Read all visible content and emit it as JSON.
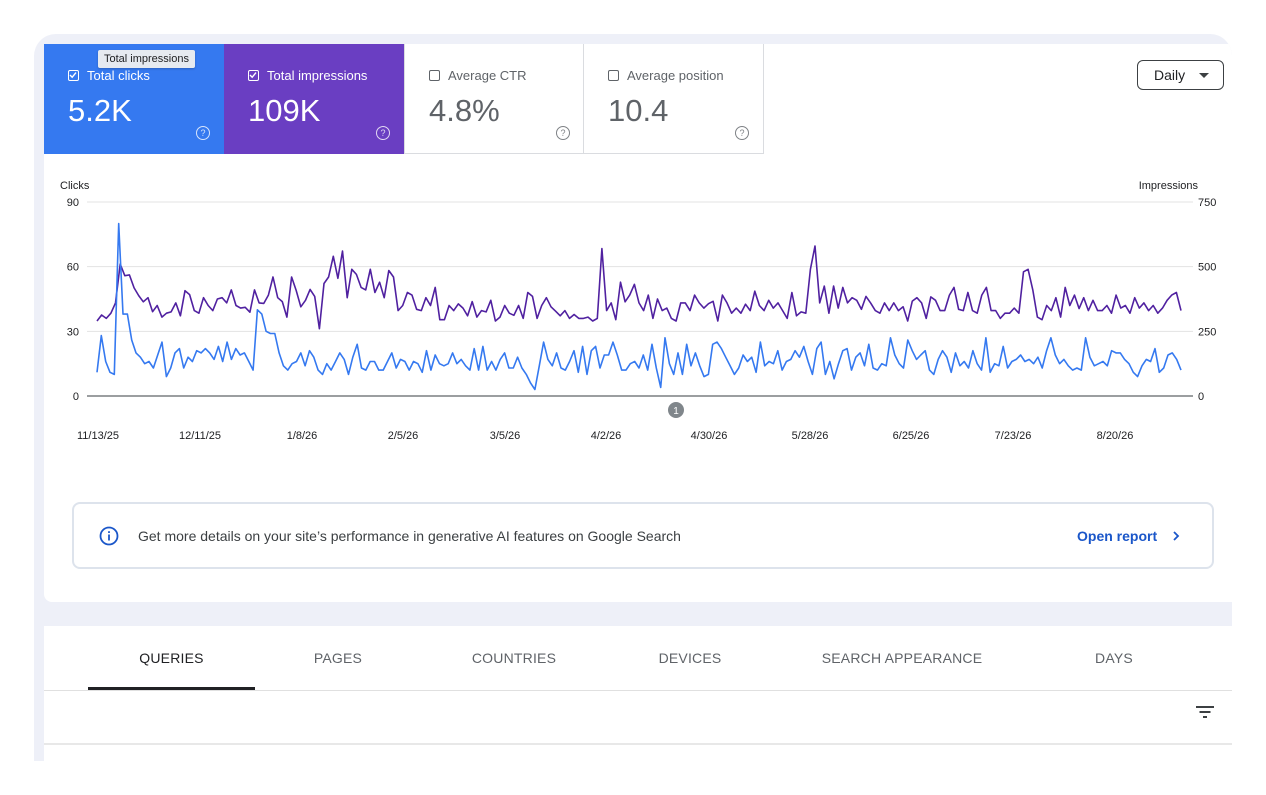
{
  "tooltip": "Total impressions",
  "metrics": [
    {
      "label": "Total clicks",
      "value": "5.2K",
      "checked": true,
      "help": "?"
    },
    {
      "label": "Total impressions",
      "value": "109K",
      "checked": true,
      "help": "?"
    },
    {
      "label": "Average CTR",
      "value": "4.8%",
      "checked": false,
      "help": "?"
    },
    {
      "label": "Average position",
      "value": "10.4",
      "checked": false,
      "help": "?"
    }
  ],
  "period_select": {
    "value": "Daily"
  },
  "chart_data": {
    "type": "line",
    "left_axis_label": "Clicks",
    "right_axis_label": "Impressions",
    "left_ticks": [
      "90",
      "60",
      "30",
      "0"
    ],
    "right_ticks": [
      "750",
      "500",
      "250",
      "0"
    ],
    "left_range": [
      0,
      90
    ],
    "right_range": [
      0,
      750
    ],
    "x_ticks": [
      "11/13/25",
      "12/11/25",
      "1/8/26",
      "2/5/26",
      "3/5/26",
      "4/2/26",
      "4/30/26",
      "5/28/26",
      "6/25/26",
      "7/23/26",
      "8/20/26"
    ],
    "grid": true,
    "annotation": "1",
    "series": [
      {
        "axis": "left",
        "color": "#3579f0",
        "values": [
          11,
          28,
          16,
          11,
          10,
          80,
          38,
          38,
          26,
          20,
          18,
          15,
          16,
          13,
          19,
          25,
          9,
          13,
          20,
          22,
          13,
          18,
          16,
          21,
          20,
          22,
          20,
          17,
          23,
          16,
          25,
          17,
          22,
          19,
          20,
          16,
          12,
          40,
          38,
          30,
          29,
          29,
          20,
          14,
          12,
          15,
          16,
          20,
          14,
          21,
          18,
          12,
          10,
          15,
          12,
          16,
          20,
          17,
          10,
          18,
          24,
          13,
          12,
          16,
          16,
          12,
          12,
          16,
          20,
          13,
          17,
          16,
          12,
          16,
          15,
          11,
          21,
          12,
          19,
          15,
          14,
          15,
          20,
          15,
          17,
          14,
          12,
          22,
          12,
          23,
          12,
          16,
          12,
          17,
          20,
          13,
          13,
          18,
          13,
          10,
          6,
          3,
          14,
          25,
          17,
          14,
          20,
          13,
          12,
          16,
          21,
          11,
          23,
          10,
          21,
          23,
          13,
          19,
          19,
          25,
          19,
          12,
          12,
          15,
          16,
          13,
          19,
          12,
          24,
          13,
          4,
          27,
          15,
          10,
          20,
          10,
          24,
          14,
          20,
          14,
          9,
          10,
          24,
          25,
          22,
          18,
          14,
          10,
          13,
          19,
          16,
          18,
          11,
          25,
          14,
          16,
          15,
          21,
          12,
          16,
          17,
          21,
          18,
          23,
          16,
          10,
          22,
          25,
          10,
          16,
          8,
          15,
          21,
          22,
          12,
          18,
          20,
          14,
          24,
          13,
          12,
          15,
          14,
          27,
          19,
          15,
          13,
          26,
          21,
          17,
          19,
          21,
          12,
          10,
          17,
          21,
          18,
          11,
          20,
          14,
          16,
          13,
          21,
          15,
          12,
          27,
          11,
          15,
          14,
          23,
          13,
          16,
          17,
          19,
          16,
          17,
          15,
          18,
          13,
          21,
          27,
          19,
          15,
          17,
          14,
          12,
          13,
          12,
          27,
          18,
          14,
          15,
          16,
          14,
          21,
          20,
          20,
          17,
          15,
          11,
          9,
          14,
          17,
          16,
          22,
          11,
          13,
          19,
          20,
          17,
          12
        ]
      },
      {
        "axis": "right",
        "color": "#5021a0",
        "values": [
          290,
          313,
          300,
          320,
          360,
          510,
          465,
          468,
          418,
          388,
          364,
          380,
          326,
          350,
          305,
          320,
          325,
          360,
          310,
          407,
          392,
          330,
          320,
          380,
          350,
          330,
          375,
          380,
          360,
          410,
          350,
          340,
          343,
          324,
          410,
          360,
          358,
          390,
          460,
          380,
          365,
          305,
          460,
          408,
          345,
          370,
          412,
          385,
          260,
          435,
          460,
          540,
          455,
          560,
          380,
          490,
          470,
          420,
          410,
          490,
          400,
          440,
          380,
          485,
          460,
          330,
          350,
          400,
          390,
          335,
          330,
          380,
          350,
          420,
          295,
          295,
          350,
          330,
          356,
          340,
          310,
          365,
          305,
          330,
          325,
          370,
          290,
          305,
          350,
          320,
          312,
          350,
          300,
          400,
          385,
          300,
          350,
          380,
          345,
          328,
          310,
          330,
          300,
          315,
          300,
          300,
          305,
          290,
          300,
          570,
          330,
          360,
          295,
          440,
          364,
          390,
          432,
          360,
          330,
          390,
          300,
          375,
          330,
          340,
          300,
          290,
          360,
          360,
          330,
          390,
          360,
          340,
          357,
          366,
          290,
          390,
          360,
          320,
          340,
          320,
          355,
          330,
          405,
          350,
          330,
          370,
          340,
          360,
          330,
          300,
          400,
          310,
          325,
          320,
          490,
          580,
          360,
          425,
          320,
          425,
          340,
          420,
          360,
          380,
          370,
          335,
          385,
          360,
          330,
          320,
          360,
          330,
          360,
          330,
          345,
          290,
          367,
          380,
          360,
          300,
          383,
          370,
          330,
          330,
          390,
          420,
          335,
          330,
          400,
          330,
          320,
          390,
          420,
          330,
          330,
          300,
          320,
          320,
          340,
          320,
          480,
          490,
          410,
          305,
          295,
          350,
          330,
          380,
          305,
          420,
          350,
          390,
          338,
          380,
          330,
          370,
          330,
          330,
          350,
          320,
          390,
          340,
          350,
          320,
          380,
          340,
          360,
          330,
          350,
          320,
          340,
          370,
          390,
          400,
          330
        ]
      }
    ]
  },
  "banner": {
    "icon": "info-icon",
    "message": "Get more details on your site’s performance in generative AI features on Google Search",
    "link_label": "Open report"
  },
  "tabs": [
    {
      "label": "QUERIES",
      "active": true
    },
    {
      "label": "PAGES",
      "active": false
    },
    {
      "label": "COUNTRIES",
      "active": false
    },
    {
      "label": "DEVICES",
      "active": false
    },
    {
      "label": "SEARCH APPEARANCE",
      "active": false
    },
    {
      "label": "DAYS",
      "active": false
    }
  ],
  "filter_icon": "filter-icon"
}
